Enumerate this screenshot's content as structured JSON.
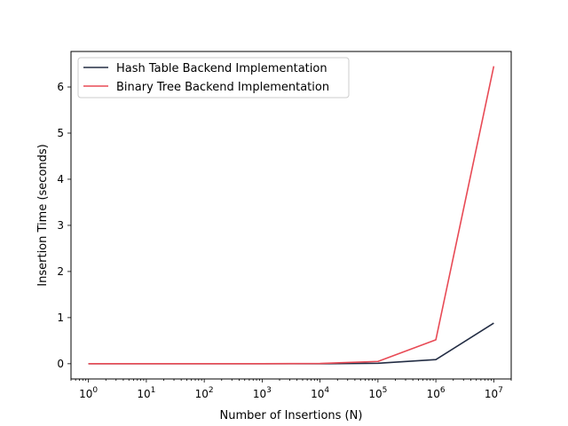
{
  "chart_data": {
    "type": "line",
    "title": "",
    "xlabel": "Number of Insertions (N)",
    "ylabel": "Insertion Time (seconds)",
    "x_scale": "log",
    "x": [
      1,
      10,
      100,
      1000,
      10000,
      100000,
      1000000,
      10000000
    ],
    "x_ticks": [
      {
        "base": "10",
        "exp": "0"
      },
      {
        "base": "10",
        "exp": "1"
      },
      {
        "base": "10",
        "exp": "2"
      },
      {
        "base": "10",
        "exp": "3"
      },
      {
        "base": "10",
        "exp": "4"
      },
      {
        "base": "10",
        "exp": "5"
      },
      {
        "base": "10",
        "exp": "6"
      },
      {
        "base": "10",
        "exp": "7"
      }
    ],
    "y_ticks": [
      "0",
      "1",
      "2",
      "3",
      "4",
      "5",
      "6"
    ],
    "xlim": [
      0.5,
      20000000
    ],
    "ylim": [
      -0.33,
      6.77
    ],
    "grid": false,
    "legend_position": "top-left",
    "series": [
      {
        "name": "Hash Table Backend Implementation",
        "color": "#232d44",
        "values": [
          0.0,
          0.0,
          0.0,
          0.0,
          0.001,
          0.01,
          0.09,
          0.88
        ]
      },
      {
        "name": "Binary Tree Backend Implementation",
        "color": "#e84a55",
        "values": [
          0.0,
          0.0,
          0.0,
          0.0,
          0.005,
          0.05,
          0.52,
          6.45
        ]
      }
    ]
  }
}
